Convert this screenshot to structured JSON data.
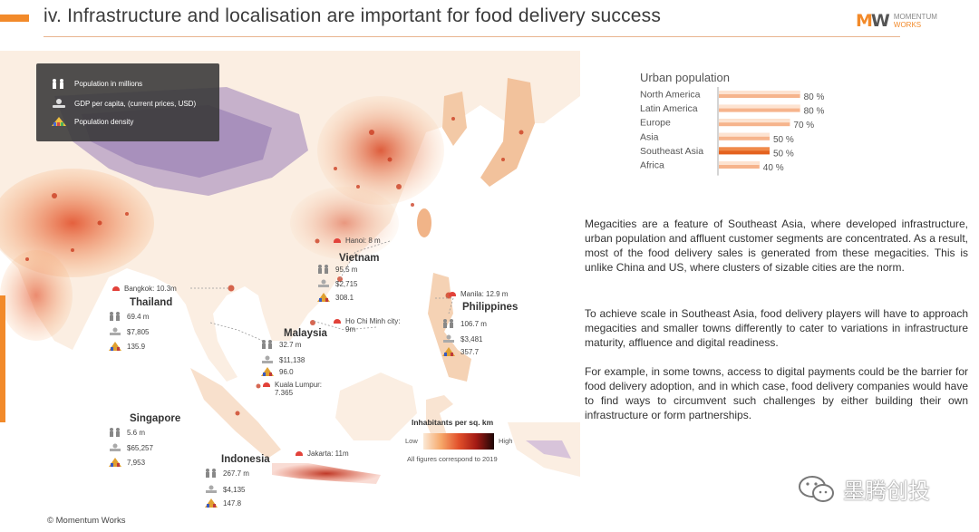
{
  "header": {
    "title": "iv. Infrastructure and localisation are important for food delivery success",
    "logo_line1": "MOMENTUM",
    "logo_line2": "WORKS",
    "accent": "#f28a2a"
  },
  "legend": {
    "population": "Population in millions",
    "gdp": "GDP per capita, (current prices, USD)",
    "density": "Population density"
  },
  "countries": {
    "thailand": {
      "name": "Thailand",
      "population": "69.4 m",
      "gdp": "$7,805",
      "density": "135.9",
      "city": "Bangkok: 10.3m"
    },
    "vietnam": {
      "name": "Vietnam",
      "population": "95.5 m",
      "gdp": "$2,715",
      "density": "308.1",
      "city": "Hanoi: 8 m",
      "city2": "Ho Chi Minh city:",
      "city2_pop": "9m"
    },
    "malaysia": {
      "name": "Malaysia",
      "population": "32.7 m",
      "gdp": "$11,138",
      "density": "96.0",
      "city": "Kuala Lumpur:",
      "city_pop": "7.365"
    },
    "philippines": {
      "name": "Philippines",
      "population": "106.7 m",
      "gdp": "$3,481",
      "density": "357.7",
      "city": "Manila: 12.9 m"
    },
    "singapore": {
      "name": "Singapore",
      "population": "5.6 m",
      "gdp": "$65,257",
      "density": "7,953"
    },
    "indonesia": {
      "name": "Indonesia",
      "population": "267.7 m",
      "gdp": "$4,135",
      "density": "147.8",
      "city": "Jakarta: 11m"
    }
  },
  "density_scale": {
    "title": "Inhabitants per sq. km",
    "low": "Low",
    "high": "High",
    "note": "All figures correspond to 2019"
  },
  "chart_data": {
    "type": "bar",
    "title": "Urban population",
    "categories": [
      "North America",
      "Latin America",
      "Europe",
      "Asia",
      "Southeast Asia",
      "Africa"
    ],
    "values": [
      80,
      80,
      70,
      50,
      50,
      40
    ],
    "value_labels": [
      "80 %",
      "80 %",
      "70 %",
      "50 %",
      "50 %",
      "40 %"
    ],
    "highlight": "Southeast Asia",
    "colors": {
      "bar": "#f6b48c",
      "bar_light": "#fde3d1",
      "highlight": "#e4621f"
    },
    "ylim": [
      0,
      100
    ]
  },
  "paragraphs": [
    "Megacities are a feature of Southeast Asia, where developed infrastructure, urban population and affluent customer segments are concentrated. As a result, most of the food delivery sales is generated from these megacities. This is unlike China and US, where clusters of sizable cities are the norm.",
    "To achieve scale in Southeast Asia, food delivery players will have to approach megacities and smaller towns differently to cater to variations in infrastructure maturity, affluence and digital readiness.",
    "For example, in some towns, access to digital payments could be the barrier for food delivery adoption, and in which case, food delivery companies would have to find ways to circumvent such challenges by either building their own infrastructure or form partnerships."
  ],
  "footer": {
    "copyright": "© Momentum Works",
    "watermark": "墨腾创投"
  }
}
